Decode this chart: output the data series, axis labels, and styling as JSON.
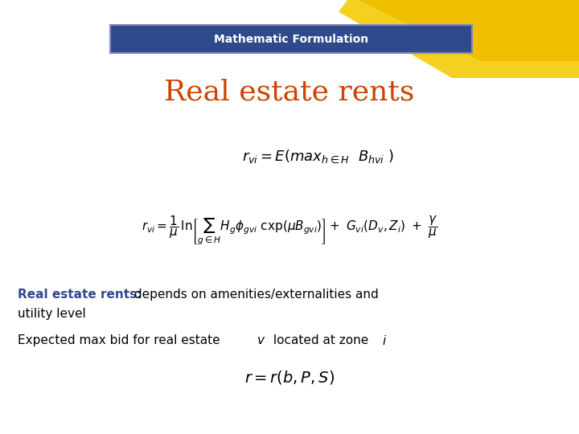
{
  "bg_color": "#ffffff",
  "header_rect_color": "#2E4A8B",
  "header_text": "Mathematic Formulation",
  "header_text_color": "#ffffff",
  "header_font_size": 10,
  "gold_rect_color": "#D4A017",
  "title_text": "Real estate rents",
  "title_color": "#CC4400",
  "title_font_size": 26,
  "bold_text": "Real estate rents:",
  "bold_color": "#2E4A8B",
  "normal_text1": " depends on amenities/externalities and\nutility level",
  "normal_text2": "Expected max bid for real estate ",
  "italic_v": "v",
  "normal_text3": " located at zone ",
  "italic_i": "i",
  "font_size_body": 11,
  "eq_font_size": 13,
  "eq2_font_size": 11
}
